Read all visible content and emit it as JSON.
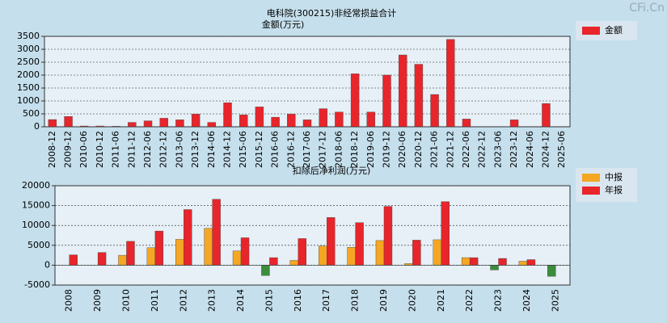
{
  "watermark": "CFi.Cn",
  "chart_data": [
    {
      "type": "bar",
      "title": "电科院(300215)非经常损益合计",
      "y_label": "金额(万元)",
      "categories": [
        "2008-12",
        "2009-12",
        "2010-06",
        "2010-12",
        "2011-06",
        "2011-12",
        "2012-06",
        "2012-12",
        "2013-06",
        "2013-12",
        "2014-06",
        "2014-12",
        "2015-06",
        "2015-12",
        "2016-06",
        "2016-12",
        "2017-06",
        "2017-12",
        "2018-06",
        "2018-12",
        "2019-06",
        "2019-12",
        "2020-06",
        "2020-12",
        "2021-06",
        "2021-12",
        "2022-06",
        "2022-12",
        "2023-06",
        "2023-12",
        "2024-06",
        "2024-12",
        "2025-06"
      ],
      "series": [
        {
          "name": "金额",
          "color": "#e8252b",
          "values": [
            280,
            400,
            30,
            30,
            20,
            170,
            230,
            330,
            270,
            490,
            170,
            930,
            460,
            770,
            370,
            490,
            270,
            700,
            570,
            2050,
            570,
            2000,
            2780,
            2420,
            1250,
            3380,
            300,
            null,
            null,
            270,
            null,
            900,
            null
          ]
        }
      ],
      "ylim": [
        0,
        3500
      ],
      "yticks": [
        0,
        500,
        1000,
        1500,
        2000,
        2500,
        3000,
        3500
      ],
      "grid": true,
      "legend": "right"
    },
    {
      "type": "bar",
      "title": "扣除后净利润(万元)",
      "categories": [
        "2008",
        "2009",
        "2010",
        "2011",
        "2012",
        "2013",
        "2014",
        "2015",
        "2016",
        "2017",
        "2018",
        "2019",
        "2020",
        "2021",
        "2022",
        "2023",
        "2024",
        "2025"
      ],
      "series": [
        {
          "name": "中报",
          "color": "#f5a623",
          "values": [
            null,
            null,
            2500,
            4400,
            6500,
            9300,
            3600,
            -2600,
            1200,
            4800,
            4500,
            6200,
            400,
            6400,
            1900,
            -1200,
            1000,
            -2800
          ]
        },
        {
          "name": "年报",
          "color": "#e8252b",
          "values": [
            2600,
            3200,
            6000,
            8600,
            14000,
            16600,
            6900,
            1900,
            6700,
            12000,
            10700,
            14800,
            6300,
            16000,
            1900,
            1700,
            1400,
            null
          ]
        }
      ],
      "negative_color": "#3b8c3b",
      "ylim": [
        -5000,
        20000
      ],
      "yticks": [
        -5000,
        0,
        5000,
        10000,
        15000,
        20000
      ],
      "grid": true,
      "legend": "right"
    }
  ]
}
